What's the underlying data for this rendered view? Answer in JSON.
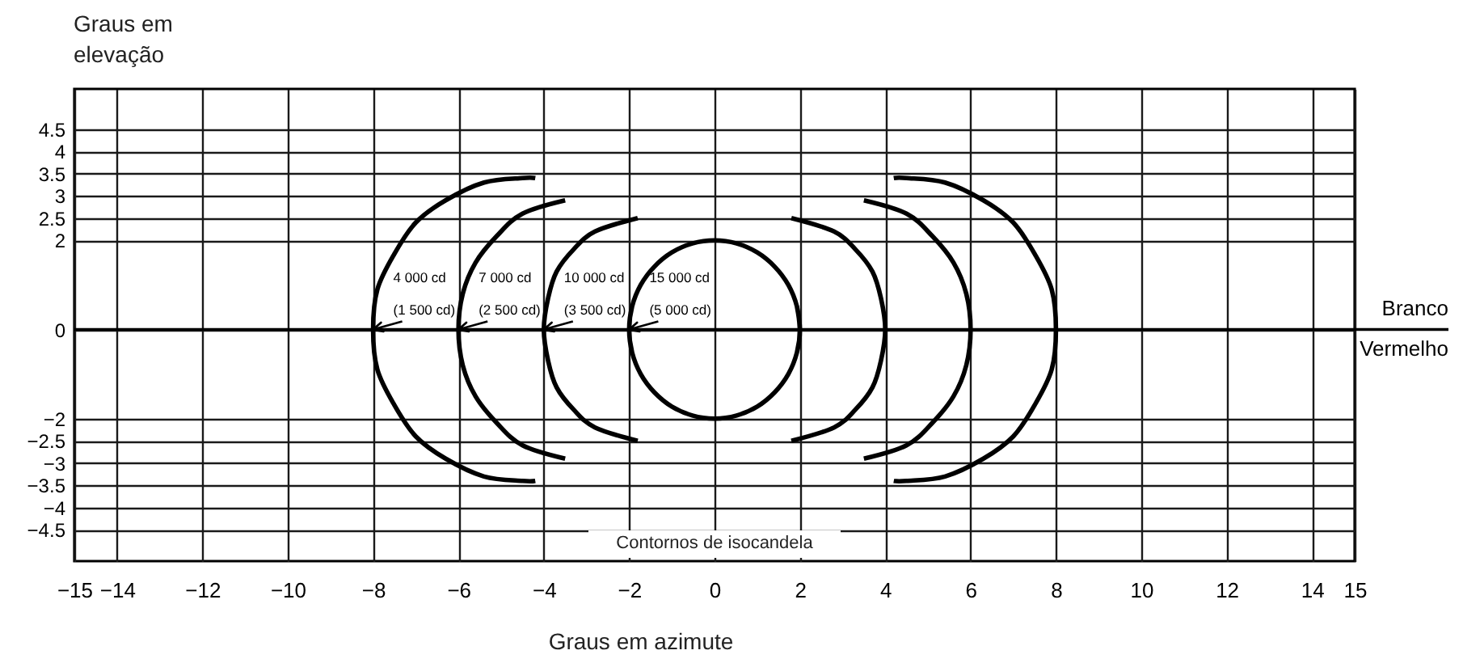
{
  "chart_data": {
    "type": "line",
    "xlabel": "Graus em azimute",
    "ylabel": "Graus em elevação",
    "xlim": [
      -15,
      15
    ],
    "xticks": [
      -15,
      -14,
      -12,
      -10,
      -8,
      -6,
      -4,
      -2,
      0,
      2,
      4,
      6,
      8,
      10,
      12,
      14,
      15
    ],
    "ylim": [
      -5.2,
      5.4
    ],
    "yticks": [
      -4.5,
      -4,
      -3.5,
      -3,
      -2.5,
      -2,
      0,
      2,
      2.5,
      3,
      3.5,
      4,
      4.5
    ],
    "grid": true,
    "ref_lines": [
      {
        "axis": "y",
        "value": 0
      }
    ],
    "annotations": [
      {
        "text": "4 000 cd (1 500 cd)",
        "x": -8,
        "y": 0
      },
      {
        "text": "7 000 cd (2 500 cd)",
        "x": -6,
        "y": 0
      },
      {
        "text": "10 000 cd (3 500 cd)",
        "x": -4,
        "y": 0
      },
      {
        "text": "15 000 cd (5 000 cd)",
        "x": -2,
        "y": 0
      },
      "Branco",
      "Vermelho",
      "Contornos de isocandela"
    ],
    "series": [
      {
        "color": "#000000",
        "x": [
          -4.2,
          -4.5,
          -5.4,
          -6.3,
          -7.0,
          -7.5,
          -7.9,
          -8,
          -7.9,
          -7.5,
          -7.0,
          -6.3,
          -5.4,
          -4.5,
          -4.2
        ],
        "values": [
          3.4,
          3.4,
          3.3,
          2.9,
          2.4,
          1.7,
          0.9,
          0,
          -0.9,
          -1.7,
          -2.4,
          -2.9,
          -3.3,
          -3.4,
          -3.4
        ]
      },
      {
        "color": "#000000",
        "x": [
          4.2,
          4.5,
          5.4,
          6.3,
          7.0,
          7.5,
          7.9,
          8,
          7.9,
          7.5,
          7.0,
          6.3,
          5.4,
          4.5,
          4.2
        ],
        "values": [
          3.4,
          3.4,
          3.3,
          2.9,
          2.4,
          1.7,
          0.9,
          0,
          -0.9,
          -1.7,
          -2.4,
          -2.9,
          -3.3,
          -3.4,
          -3.4
        ]
      },
      {
        "color": "#000000",
        "x": [
          -3.5,
          -4.5,
          -5.1,
          -5.6,
          -5.9,
          -6,
          -5.9,
          -5.6,
          -5.1,
          -4.5,
          -3.5
        ],
        "values": [
          2.9,
          2.6,
          2.1,
          1.5,
          0.8,
          0,
          -0.8,
          -1.5,
          -2.1,
          -2.6,
          -2.9
        ]
      },
      {
        "color": "#000000",
        "x": [
          3.5,
          4.5,
          5.1,
          5.6,
          5.9,
          6,
          5.9,
          5.6,
          5.1,
          4.5,
          3.5
        ],
        "values": [
          2.9,
          2.6,
          2.1,
          1.5,
          0.8,
          0,
          -0.8,
          -1.5,
          -2.1,
          -2.6,
          -2.9
        ]
      },
      {
        "color": "#000000",
        "x": [
          -1.8,
          -2.8,
          -3.3,
          -3.7,
          -3.9,
          -4,
          -3.9,
          -3.7,
          -3.3,
          -2.8,
          -1.8
        ],
        "values": [
          2.5,
          2.2,
          1.8,
          1.3,
          0.7,
          0,
          -0.7,
          -1.3,
          -1.8,
          -2.2,
          -2.5
        ]
      },
      {
        "color": "#000000",
        "x": [
          1.8,
          2.8,
          3.3,
          3.7,
          3.9,
          4,
          3.9,
          3.7,
          3.3,
          2.8,
          1.8
        ],
        "values": [
          2.5,
          2.2,
          1.8,
          1.3,
          0.7,
          0,
          -0.7,
          -1.3,
          -1.8,
          -2.2,
          -2.5
        ]
      },
      {
        "color": "#000000",
        "x": [
          2,
          1.93,
          1.73,
          1.41,
          1,
          0.52,
          0,
          -0.52,
          -1,
          -1.41,
          -1.73,
          -1.93,
          -2,
          -1.93,
          -1.73,
          -1.41,
          -1,
          -0.52,
          0,
          0.52,
          1,
          1.41,
          1.73,
          1.93,
          2,
          1.93
        ],
        "values": [
          0,
          0.52,
          1,
          1.41,
          1.73,
          1.93,
          2,
          1.93,
          1.73,
          1.41,
          1,
          0.52,
          0,
          -0.52,
          -1,
          -1.41,
          -1.73,
          -1.93,
          -2,
          -1.93,
          -1.73,
          -1.41,
          -1,
          -0.52,
          0,
          0.52
        ]
      }
    ]
  }
}
